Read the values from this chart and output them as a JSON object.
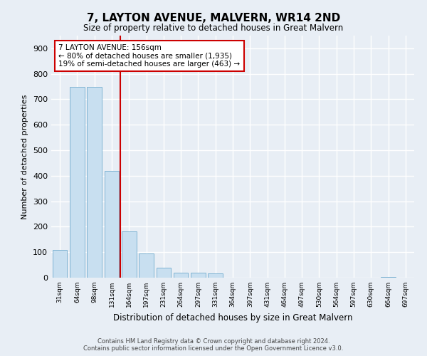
{
  "title": "7, LAYTON AVENUE, MALVERN, WR14 2ND",
  "subtitle": "Size of property relative to detached houses in Great Malvern",
  "xlabel": "Distribution of detached houses by size in Great Malvern",
  "ylabel": "Number of detached properties",
  "footer_line1": "Contains HM Land Registry data © Crown copyright and database right 2024.",
  "footer_line2": "Contains public sector information licensed under the Open Government Licence v3.0.",
  "annotation_line1": "7 LAYTON AVENUE: 156sqm",
  "annotation_line2": "← 80% of detached houses are smaller (1,935)",
  "annotation_line3": "19% of semi-detached houses are larger (463) →",
  "bar_color": "#c8dff0",
  "bar_edge_color": "#7fb3d3",
  "vline_color": "#cc0000",
  "background_color": "#e8eef5",
  "grid_color": "#ffffff",
  "categories": [
    "31sqm",
    "64sqm",
    "98sqm",
    "131sqm",
    "164sqm",
    "197sqm",
    "231sqm",
    "264sqm",
    "297sqm",
    "331sqm",
    "364sqm",
    "397sqm",
    "431sqm",
    "464sqm",
    "497sqm",
    "530sqm",
    "564sqm",
    "597sqm",
    "630sqm",
    "664sqm",
    "697sqm"
  ],
  "values": [
    110,
    748,
    750,
    420,
    183,
    95,
    40,
    20,
    20,
    18,
    0,
    0,
    0,
    0,
    0,
    0,
    0,
    0,
    0,
    3,
    0
  ],
  "ylim": [
    0,
    950
  ],
  "yticks": [
    0,
    100,
    200,
    300,
    400,
    500,
    600,
    700,
    800,
    900
  ],
  "vline_position": 3.5
}
